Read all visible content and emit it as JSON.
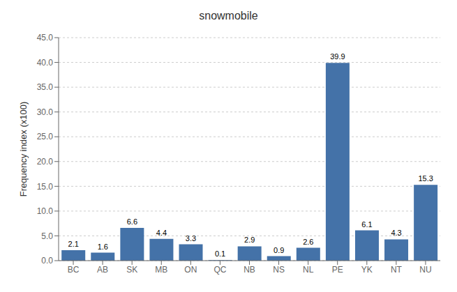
{
  "chart_data": {
    "type": "bar",
    "title": "snowmobile",
    "categories": [
      "BC",
      "AB",
      "SK",
      "MB",
      "ON",
      "QC",
      "NB",
      "NS",
      "NL",
      "PE",
      "YK",
      "NT",
      "NU"
    ],
    "values": [
      2.1,
      1.6,
      6.6,
      4.4,
      3.3,
      0.1,
      2.9,
      0.9,
      2.6,
      39.9,
      6.1,
      4.3,
      15.3
    ],
    "color": "#4472a8",
    "ylabel": "Frequency index (x100)",
    "ylim": [
      0,
      45.0
    ],
    "yticks": [
      {
        "value": 0,
        "label": "0.0"
      },
      {
        "value": 5,
        "label": "5.0"
      },
      {
        "value": 10,
        "label": "10.0"
      },
      {
        "value": 15,
        "label": "15.0"
      },
      {
        "value": 20,
        "label": "20.0"
      },
      {
        "value": 25,
        "label": "25.0"
      },
      {
        "value": 30,
        "label": "30.0"
      },
      {
        "value": 35,
        "label": "35.0"
      },
      {
        "value": 40,
        "label": "40.0"
      },
      {
        "value": 45,
        "label": "45.0"
      }
    ],
    "grid": true,
    "data_labels": true
  }
}
